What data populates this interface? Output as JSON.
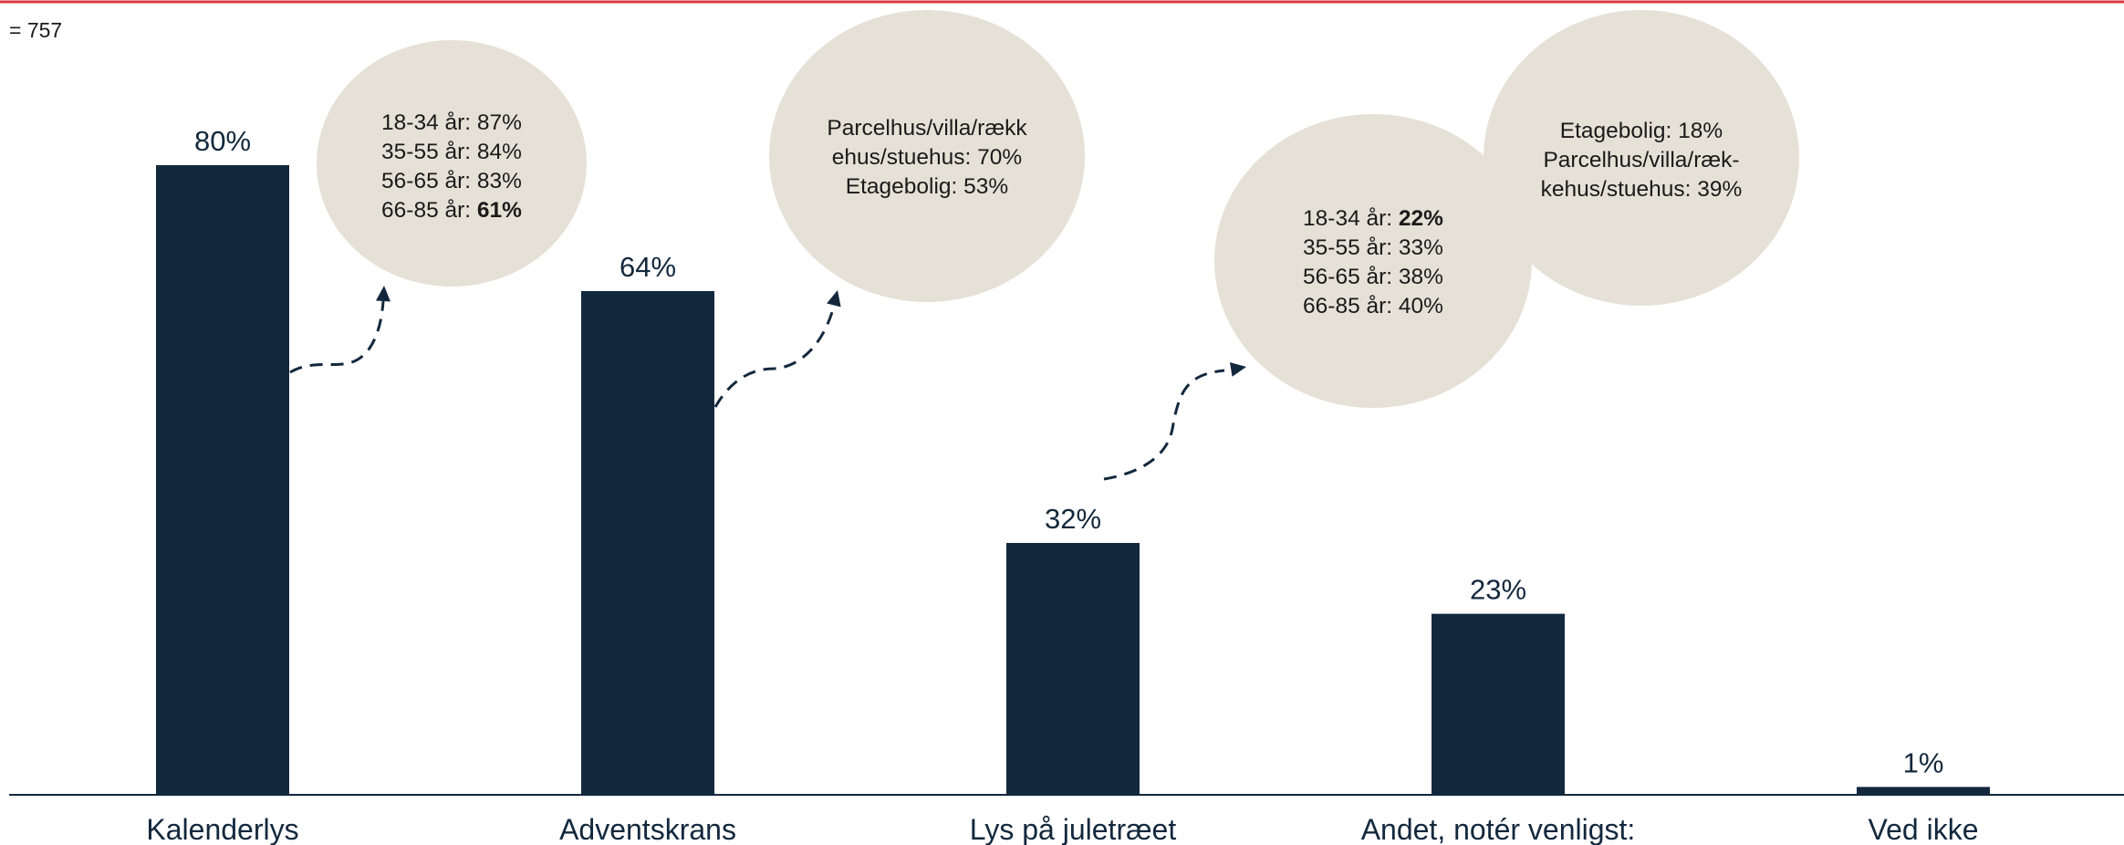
{
  "sample_label": "= 757",
  "colors": {
    "bar": "#13283d",
    "bubble": "#e6e1d7",
    "top_rule": "#d7393d",
    "axis": "#13283d"
  },
  "chart_data": {
    "type": "bar",
    "title": "",
    "xlabel": "",
    "ylabel": "",
    "ylim": [
      0,
      100
    ],
    "grid": false,
    "categories": [
      "Kalenderlys",
      "Adventskrans",
      "Lys på juletræet",
      "Andet, notér venligst:",
      "Ved ikke"
    ],
    "values": [
      80,
      64,
      32,
      23,
      1
    ],
    "value_labels": [
      "80%",
      "64%",
      "32%",
      "23%",
      "1%"
    ]
  },
  "annotations": [
    {
      "id": "age-kalenderlys",
      "lines": [
        {
          "text": "18-34 år: 87%"
        },
        {
          "text": "35-55 år: 84%"
        },
        {
          "text": "56-65 år: 83%"
        },
        {
          "text": "66-85 år: ",
          "bold": "61%"
        }
      ]
    },
    {
      "id": "housing-adventskrans",
      "lines": [
        {
          "text": "Parcelhus/villa/rækk"
        },
        {
          "text": "ehus/stuehus: 70%"
        },
        {
          "text": "Etagebolig: 53%"
        }
      ]
    },
    {
      "id": "age-lys",
      "lines": [
        {
          "text": "18-34 år: ",
          "bold": "22%"
        },
        {
          "text": "35-55 år: 33%"
        },
        {
          "text": "56-65 år: 38%"
        },
        {
          "text": "66-85 år: 40%"
        }
      ]
    },
    {
      "id": "housing-lys",
      "lines": [
        {
          "text": "Etagebolig: 18%"
        },
        {
          "text": "Parcelhus/villa/ræk-"
        },
        {
          "text": "kehus/stuehus: 39%"
        }
      ]
    }
  ]
}
